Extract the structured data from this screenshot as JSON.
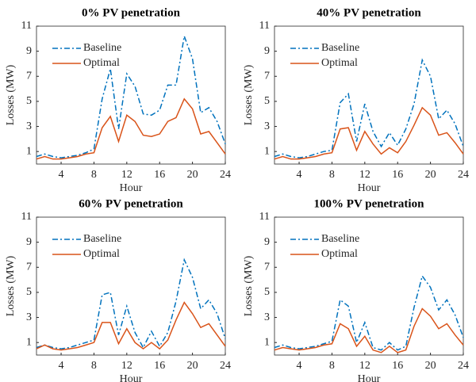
{
  "chart_data": [
    {
      "type": "line",
      "title": "0% PV penetration",
      "x_label": "Hour",
      "y_label": "Losses (MW)",
      "x": [
        1,
        2,
        3,
        4,
        5,
        6,
        7,
        8,
        9,
        10,
        11,
        12,
        13,
        14,
        15,
        16,
        17,
        18,
        19,
        20,
        21,
        22,
        23,
        24
      ],
      "xlim": [
        1,
        24
      ],
      "xticks": [
        4,
        8,
        12,
        16,
        20,
        24
      ],
      "ylim": [
        0,
        11
      ],
      "yticks": [
        1,
        3,
        5,
        7,
        9,
        11
      ],
      "grid": false,
      "legend": "upper-left",
      "series": [
        {
          "name": "Baseline",
          "color": "#0072bd",
          "style": "dash-dot",
          "values": [
            0.6,
            0.8,
            0.6,
            0.5,
            0.6,
            0.7,
            0.9,
            1.2,
            5.2,
            7.6,
            2.8,
            7.2,
            6.2,
            4.0,
            3.9,
            4.3,
            6.3,
            6.3,
            10.2,
            8.4,
            4.1,
            4.5,
            3.4,
            1.6
          ]
        },
        {
          "name": "Optimal",
          "color": "#d95319",
          "style": "solid",
          "values": [
            0.4,
            0.6,
            0.4,
            0.4,
            0.5,
            0.6,
            0.8,
            0.9,
            2.9,
            3.8,
            1.8,
            3.9,
            3.4,
            2.3,
            2.2,
            2.4,
            3.4,
            3.7,
            5.2,
            4.4,
            2.4,
            2.6,
            1.7,
            0.8
          ]
        }
      ]
    },
    {
      "type": "line",
      "title": "40% PV penetration",
      "x_label": "Hour",
      "y_label": "Losses (MW)",
      "x": [
        1,
        2,
        3,
        4,
        5,
        6,
        7,
        8,
        9,
        10,
        11,
        12,
        13,
        14,
        15,
        16,
        17,
        18,
        19,
        20,
        21,
        22,
        23,
        24
      ],
      "xlim": [
        1,
        24
      ],
      "xticks": [
        4,
        8,
        12,
        16,
        20,
        24
      ],
      "ylim": [
        0,
        11
      ],
      "yticks": [
        1,
        3,
        5,
        7,
        9,
        11
      ],
      "grid": false,
      "legend": "upper-left",
      "series": [
        {
          "name": "Baseline",
          "color": "#0072bd",
          "style": "dash-dot",
          "values": [
            0.6,
            0.8,
            0.6,
            0.5,
            0.6,
            0.8,
            1.0,
            1.1,
            4.9,
            5.6,
            1.8,
            4.8,
            2.6,
            1.4,
            2.5,
            1.5,
            2.8,
            4.8,
            8.3,
            7.0,
            3.6,
            4.3,
            3.2,
            1.4
          ]
        },
        {
          "name": "Optimal",
          "color": "#d95319",
          "style": "solid",
          "values": [
            0.4,
            0.6,
            0.4,
            0.4,
            0.5,
            0.6,
            0.8,
            0.9,
            2.8,
            2.9,
            1.1,
            2.6,
            1.6,
            0.8,
            1.3,
            0.9,
            1.8,
            3.1,
            4.5,
            3.9,
            2.3,
            2.5,
            1.7,
            0.8
          ]
        }
      ]
    },
    {
      "type": "line",
      "title": "60% PV penetration",
      "x_label": "Hour",
      "y_label": "Losses (MW)",
      "x": [
        1,
        2,
        3,
        4,
        5,
        6,
        7,
        8,
        9,
        10,
        11,
        12,
        13,
        14,
        15,
        16,
        17,
        18,
        19,
        20,
        21,
        22,
        23,
        24
      ],
      "xlim": [
        1,
        24
      ],
      "xticks": [
        4,
        8,
        12,
        16,
        20,
        24
      ],
      "ylim": [
        0,
        11
      ],
      "yticks": [
        1,
        3,
        5,
        7,
        9,
        11
      ],
      "grid": false,
      "legend": "upper-left",
      "series": [
        {
          "name": "Baseline",
          "color": "#0072bd",
          "style": "dash-dot",
          "values": [
            0.6,
            0.8,
            0.6,
            0.5,
            0.6,
            0.8,
            1.0,
            1.2,
            4.8,
            5.0,
            1.6,
            3.9,
            1.8,
            0.6,
            1.9,
            0.7,
            1.8,
            4.3,
            7.6,
            6.2,
            3.7,
            4.4,
            3.3,
            1.3
          ]
        },
        {
          "name": "Optimal",
          "color": "#d95319",
          "style": "solid",
          "values": [
            0.5,
            0.8,
            0.5,
            0.4,
            0.5,
            0.6,
            0.8,
            1.0,
            2.6,
            2.6,
            0.9,
            2.1,
            1.0,
            0.5,
            1.0,
            0.5,
            1.2,
            2.8,
            4.2,
            3.3,
            2.2,
            2.5,
            1.6,
            0.7
          ]
        }
      ]
    },
    {
      "type": "line",
      "title": "100% PV penetration",
      "x_label": "Hour",
      "y_label": "Losses (MW)",
      "x": [
        1,
        2,
        3,
        4,
        5,
        6,
        7,
        8,
        9,
        10,
        11,
        12,
        13,
        14,
        15,
        16,
        17,
        18,
        19,
        20,
        21,
        22,
        23,
        24
      ],
      "xlim": [
        1,
        24
      ],
      "xticks": [
        4,
        8,
        12,
        16,
        20,
        24
      ],
      "ylim": [
        0,
        11
      ],
      "yticks": [
        1,
        3,
        5,
        7,
        9,
        11
      ],
      "grid": false,
      "legend": "upper-left",
      "series": [
        {
          "name": "Baseline",
          "color": "#0072bd",
          "style": "dash-dot",
          "values": [
            0.6,
            0.8,
            0.6,
            0.5,
            0.6,
            0.7,
            0.9,
            1.1,
            4.4,
            3.9,
            1.0,
            2.6,
            0.6,
            0.4,
            1.0,
            0.4,
            0.7,
            3.8,
            6.3,
            5.4,
            3.6,
            4.4,
            3.2,
            1.4
          ]
        },
        {
          "name": "Optimal",
          "color": "#d95319",
          "style": "solid",
          "values": [
            0.4,
            0.6,
            0.5,
            0.4,
            0.5,
            0.6,
            0.8,
            0.9,
            2.5,
            2.1,
            0.7,
            1.5,
            0.4,
            0.2,
            0.7,
            0.2,
            0.4,
            2.3,
            3.7,
            3.1,
            2.1,
            2.5,
            1.6,
            0.8
          ]
        }
      ]
    }
  ]
}
